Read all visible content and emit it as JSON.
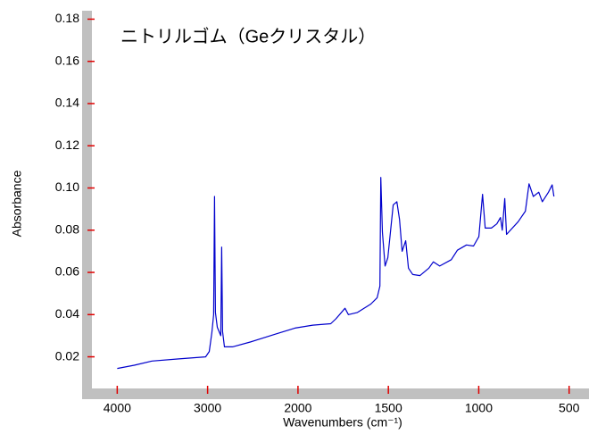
{
  "chart_data": {
    "type": "line",
    "title": "ニトリルゴム（Geクリスタル）",
    "x_label": "Wavenumbers (cm⁻¹)",
    "y_label": "Absorbance",
    "xscale": "piecewise",
    "xlim": [
      4280,
      390
    ],
    "ylim": [
      0.005,
      0.184
    ],
    "xticks": [
      4000,
      3000,
      2000,
      1500,
      1000,
      500
    ],
    "yticks": [
      0.02,
      0.04,
      0.06,
      0.08,
      {
        "value": 0.1,
        "label": "0.10"
      },
      0.12,
      0.14,
      0.16,
      0.18
    ],
    "series": [
      {
        "color": "#0000cc",
        "x": [
          4000,
          3812,
          3615,
          3318,
          3022,
          2982,
          2953,
          2933,
          2923,
          2913,
          2893,
          2854,
          2844,
          2834,
          2814,
          2725,
          2528,
          2231,
          2034,
          1918,
          1819,
          1790,
          1740,
          1721,
          1671,
          1597,
          1562,
          1547,
          1542,
          1533,
          1518,
          1503,
          1473,
          1453,
          1438,
          1424,
          1404,
          1389,
          1365,
          1325,
          1276,
          1251,
          1216,
          1152,
          1118,
          1068,
          1029,
          999,
          979,
          964,
          930,
          900,
          880,
          870,
          856,
          846,
          782,
          742,
          722,
          698,
          668,
          648,
          614,
          594,
          584
        ],
        "values": [
          0.0145,
          0.016,
          0.018,
          0.019,
          0.02,
          0.0225,
          0.0315,
          0.04,
          0.096,
          0.041,
          0.034,
          0.03,
          0.072,
          0.032,
          0.0247,
          0.0247,
          0.027,
          0.031,
          0.0336,
          0.035,
          0.0357,
          0.038,
          0.043,
          0.04,
          0.041,
          0.045,
          0.048,
          0.0535,
          0.105,
          0.079,
          0.063,
          0.067,
          0.092,
          0.0935,
          0.085,
          0.07,
          0.075,
          0.062,
          0.059,
          0.0585,
          0.062,
          0.065,
          0.063,
          0.066,
          0.0705,
          0.073,
          0.0725,
          0.077,
          0.097,
          0.081,
          0.081,
          0.083,
          0.086,
          0.08,
          0.095,
          0.078,
          0.084,
          0.089,
          0.102,
          0.096,
          0.098,
          0.0935,
          0.098,
          0.1015,
          0.096
        ]
      }
    ]
  }
}
